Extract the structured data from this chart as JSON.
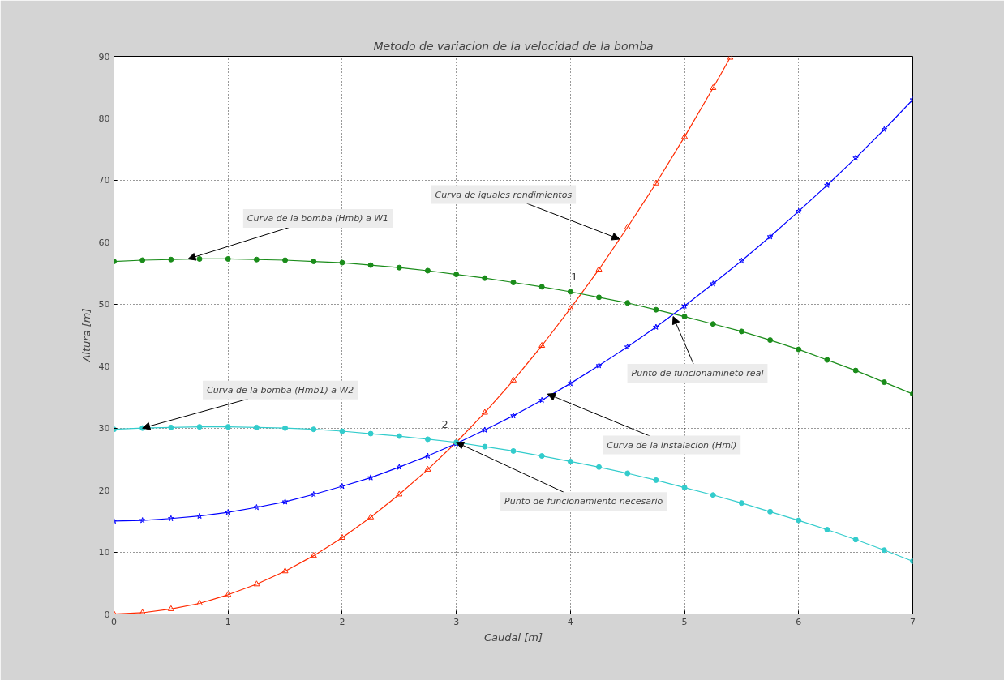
{
  "chart_data": {
    "type": "line",
    "title": "Metodo de variacion de la velocidad de la bomba",
    "xlabel": "Caudal [m]",
    "ylabel": "Altura [m]",
    "xlim": [
      0,
      7
    ],
    "ylim": [
      0,
      90
    ],
    "xticks": [
      0,
      1,
      2,
      3,
      4,
      5,
      6,
      7
    ],
    "yticks": [
      0,
      10,
      20,
      30,
      40,
      50,
      60,
      70,
      80,
      90
    ],
    "grid": true,
    "line_style": "solid",
    "series": [
      {
        "color": "#ff2a00",
        "marker": "triangle",
        "x": [
          0,
          0.25,
          0.5,
          0.75,
          1,
          1.25,
          1.5,
          1.75,
          2,
          2.25,
          2.5,
          2.75,
          3,
          3.25,
          3.5,
          3.75,
          4,
          4.25,
          4.5,
          4.75,
          5,
          5.25,
          5.4
        ],
        "values": [
          0,
          0.2,
          0.8,
          1.7,
          3.1,
          4.8,
          6.9,
          9.4,
          12.3,
          15.6,
          19.3,
          23.3,
          27.7,
          32.5,
          37.7,
          43.3,
          49.3,
          55.6,
          62.4,
          69.5,
          77,
          84.9,
          89.8
        ]
      },
      {
        "color": "#0000ff",
        "marker": "star",
        "x": [
          0,
          0.25,
          0.5,
          0.75,
          1,
          1.25,
          1.5,
          1.75,
          2,
          2.25,
          2.5,
          2.75,
          3,
          3.25,
          3.5,
          3.75,
          4,
          4.25,
          4.5,
          4.75,
          5,
          5.25,
          5.5,
          5.75,
          6,
          6.25,
          6.5,
          6.75,
          7
        ],
        "values": [
          15,
          15.1,
          15.4,
          15.8,
          16.4,
          17.2,
          18.1,
          19.3,
          20.6,
          22,
          23.7,
          25.5,
          27.5,
          29.7,
          32,
          34.5,
          37.2,
          40.1,
          43.1,
          46.3,
          49.7,
          53.3,
          57,
          60.9,
          65,
          69.2,
          73.6,
          78.2,
          83
        ]
      },
      {
        "color": "#1a8c1a",
        "marker": "circle",
        "x": [
          0,
          0.25,
          0.5,
          0.75,
          1,
          1.25,
          1.5,
          1.75,
          2,
          2.25,
          2.5,
          2.75,
          3,
          3.25,
          3.5,
          3.75,
          4,
          4.25,
          4.5,
          4.75,
          5,
          5.25,
          5.5,
          5.75,
          6,
          6.25,
          6.5,
          6.75,
          7
        ],
        "values": [
          56.9,
          57.1,
          57.2,
          57.3,
          57.3,
          57.2,
          57.1,
          56.9,
          56.7,
          56.3,
          55.9,
          55.4,
          54.8,
          54.2,
          53.5,
          52.8,
          52,
          51.1,
          50.2,
          49.1,
          48,
          46.8,
          45.6,
          44.2,
          42.7,
          41,
          39.3,
          37.4,
          35.5
        ]
      },
      {
        "color": "#33cccc",
        "marker": "circle",
        "x": [
          0,
          0.25,
          0.5,
          0.75,
          1,
          1.25,
          1.5,
          1.75,
          2,
          2.25,
          2.5,
          2.75,
          3,
          3.25,
          3.5,
          3.75,
          4,
          4.25,
          4.5,
          4.75,
          5,
          5.25,
          5.5,
          5.75,
          6,
          6.25,
          6.5,
          6.75,
          7
        ],
        "values": [
          29.8,
          30,
          30.1,
          30.2,
          30.2,
          30.1,
          30,
          29.8,
          29.5,
          29.1,
          28.7,
          28.2,
          27.7,
          27,
          26.3,
          25.5,
          24.6,
          23.7,
          22.7,
          21.6,
          20.4,
          19.2,
          17.9,
          16.5,
          15.1,
          13.6,
          12,
          10.3,
          8.5
        ]
      }
    ],
    "annotations": [
      {
        "text": "Curva de iguales rendimientos",
        "x": 4.43,
        "y": 60.5
      },
      {
        "text": "Curva de la bomba (Hmb) a W1",
        "x": 0.65,
        "y": 57.3
      },
      {
        "text": "Punto de funcionamineto real",
        "x": 4.9,
        "y": 48
      },
      {
        "text": "Curva de la bomba (Hmb1) a W2",
        "x": 0.25,
        "y": 30
      },
      {
        "text": "Curva de la instalacion (Hmi)",
        "x": 3.8,
        "y": 35.5
      },
      {
        "text": "Punto de funcionamiento necesario",
        "x": 3.0,
        "y": 27.7
      },
      {
        "text": "1",
        "x": 4.07,
        "y": 51.5
      },
      {
        "text": "2",
        "x": 3.0,
        "y": 27.7
      }
    ]
  }
}
